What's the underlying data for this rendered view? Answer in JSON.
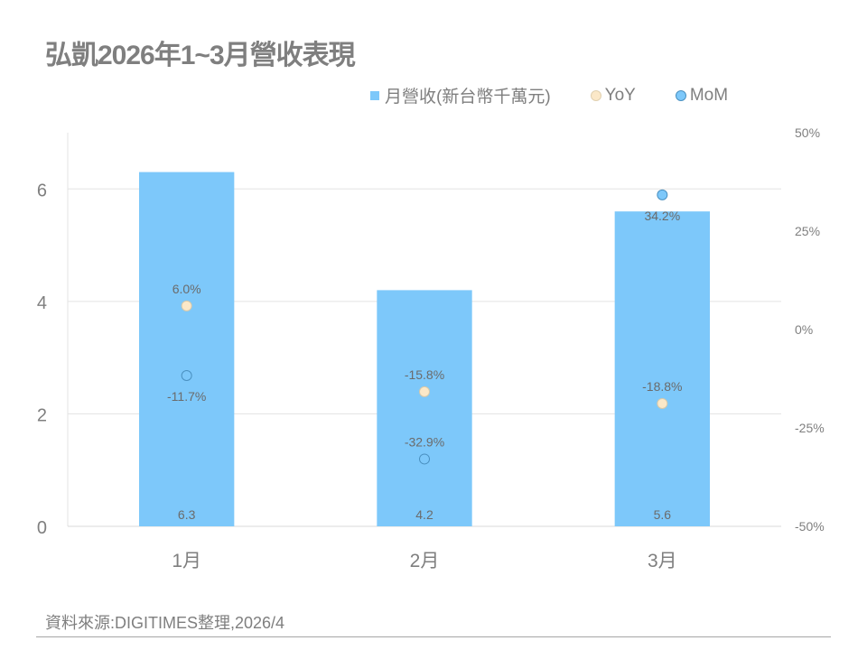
{
  "title": "弘凱2026年1~3月營收表現",
  "legend": [
    {
      "label": "月營收(新台幣千萬元)",
      "color": "#7dc8fa",
      "shape": "square"
    },
    {
      "label": "YoY",
      "color": "#fbe8c8",
      "shape": "circle"
    },
    {
      "label": "MoM",
      "color": "#7dc8fa",
      "shape": "circle"
    }
  ],
  "source": "資料來源:DIGITIMES整理,2026/4",
  "chart_data": {
    "type": "bar",
    "categories": [
      "1月",
      "2月",
      "3月"
    ],
    "series": [
      {
        "name": "月營收(新台幣千萬元)",
        "type": "bar",
        "axis": "left",
        "values": [
          6.3,
          4.2,
          5.6
        ],
        "labels": [
          "6.3",
          "4.2",
          "5.6"
        ],
        "color": "#7dc8fa"
      },
      {
        "name": "YoY",
        "type": "scatter",
        "axis": "right",
        "values": [
          6.0,
          -15.8,
          -18.8
        ],
        "labels": [
          "6.0%",
          "-15.8%",
          "-18.8%"
        ],
        "color": "#fbe8c8"
      },
      {
        "name": "MoM",
        "type": "scatter",
        "axis": "right",
        "values": [
          -11.7,
          -32.9,
          34.2
        ],
        "labels": [
          "-11.7%",
          "-32.9%",
          "34.2%"
        ],
        "color": "#7dc8fa"
      }
    ],
    "left_axis": {
      "ylim": [
        0,
        7
      ],
      "ticks": [
        0,
        2,
        4,
        6
      ],
      "tick_labels": [
        "0",
        "2",
        "4",
        "6"
      ]
    },
    "right_axis": {
      "ylim": [
        -50,
        50
      ],
      "ticks": [
        -50,
        -25,
        0,
        25,
        50
      ],
      "tick_labels": [
        "-50%",
        "-25%",
        "0%",
        "25%",
        "50%"
      ]
    },
    "grid": true,
    "legend_position": "top-right"
  }
}
